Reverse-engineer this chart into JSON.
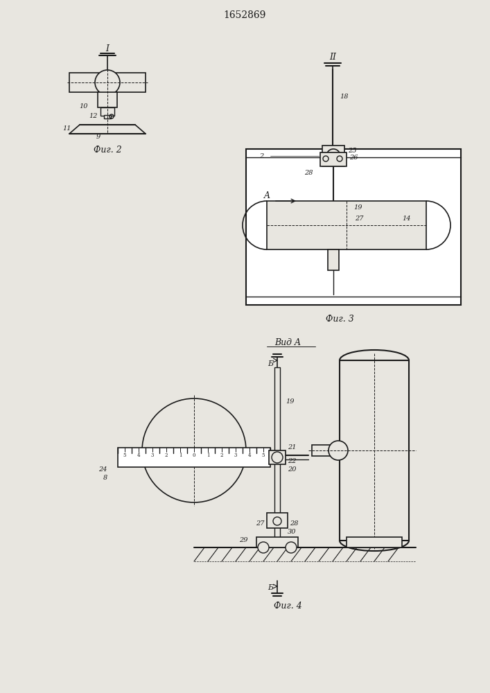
{
  "title": "1652869",
  "bg_color": "#e8e6e0",
  "line_color": "#1a1a1a",
  "fig2_label": "Фиг. 2",
  "fig3_label": "Фиг. 3",
  "fig4_label": "Фиг. 4",
  "vid_a_label": "Вид A",
  "labels_fig2": [
    "I",
    "10",
    "12",
    "11",
    "9"
  ],
  "labels_fig3": [
    "II",
    "18",
    "25",
    "26",
    "A",
    "19",
    "27",
    "2",
    "28",
    "14"
  ],
  "labels_fig4": [
    "Б",
    "19",
    "21",
    "22",
    "20",
    "27",
    "28",
    "29",
    "30",
    "24",
    "8",
    "Б"
  ]
}
